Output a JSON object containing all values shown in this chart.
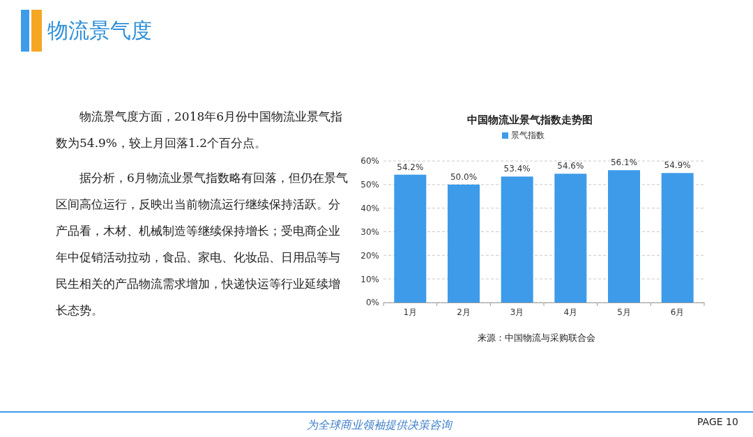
{
  "chart_data": {
    "type": "bar",
    "title": "中国物流业景气指数走势图",
    "categories": [
      "1月",
      "2月",
      "3月",
      "4月",
      "5月",
      "6月"
    ],
    "series": [
      {
        "name": "景气指数",
        "color": "#3d9be9",
        "values": [
          54.2,
          50.0,
          53.4,
          54.6,
          56.1,
          54.9
        ],
        "value_labels": [
          "54.2%",
          "50.0%",
          "53.4%",
          "54.6%",
          "56.1%",
          "54.9%"
        ]
      }
    ],
    "ylim": [
      0,
      60
    ],
    "yticks": [
      {
        "value": 0,
        "label": "0%"
      },
      {
        "value": 10,
        "label": "10%"
      },
      {
        "value": 20,
        "label": "20%"
      },
      {
        "value": 30,
        "label": "30%"
      },
      {
        "value": 40,
        "label": "40%"
      },
      {
        "value": 50,
        "label": "50%"
      },
      {
        "value": 60,
        "label": "60%"
      }
    ],
    "grid": "y",
    "legend": "top",
    "annotations": [
      "物流景气度",
      "物流景气度方面，2018年6月份中国物流业景气指数为54.9%，较上月回落1.2个百分点。",
      "据分析，6月物流业景气指数略有回落，但仍在景气区间高位运行，反映出当前物流运行继续保持活跃。分产品看，木材、机械制造等继续保持增长；受电商企业年中促销活动拉动，食品、家电、化妆品、日用品等与民生相关的产品物流需求增加，快递快运等行业延续增长态势。",
      "来源：中国物流与采购联合会",
      "为全球商业领袖提供决策咨询",
      "PAGE 10"
    ]
  }
}
